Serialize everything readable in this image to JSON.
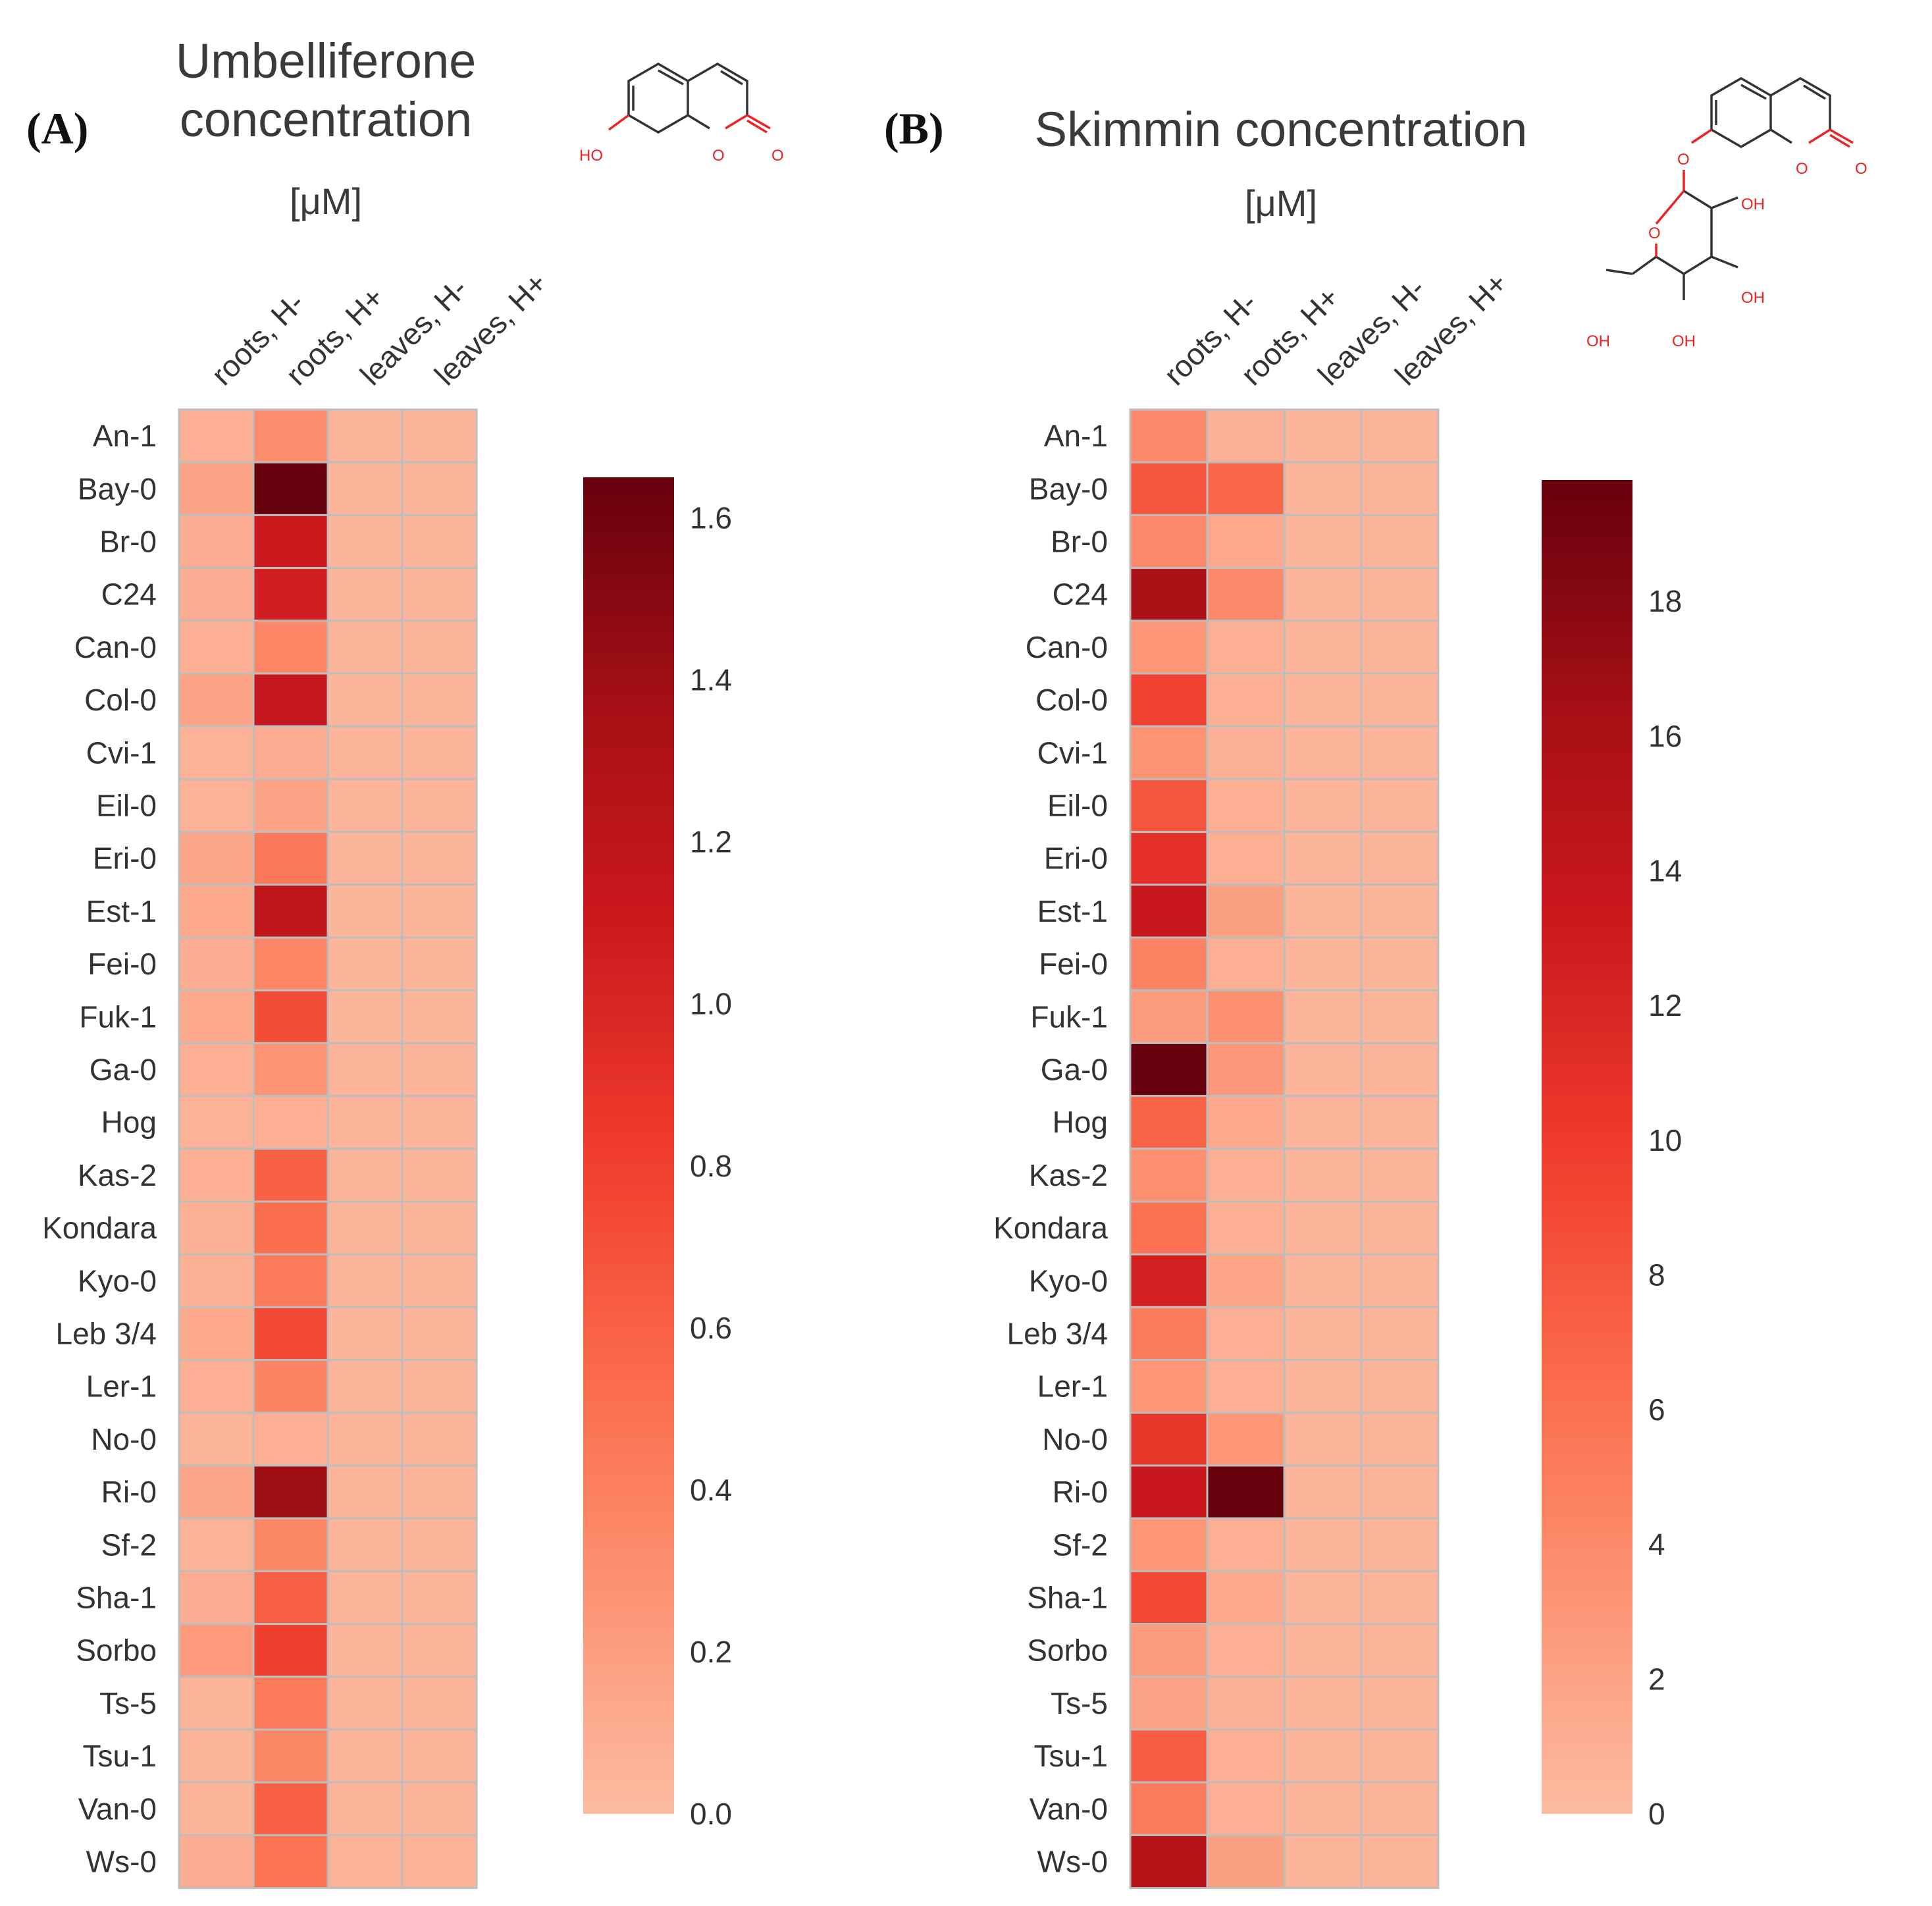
{
  "colors": {
    "scale": [
      "#fcbba1",
      "#fc9272",
      "#fb6a4a",
      "#ef3b2c",
      "#cb181d",
      "#a50f15",
      "#67000d"
    ],
    "cell_border": "#bdbdbd",
    "heteroatom": "#ee2222"
  },
  "chart_data": [
    {
      "type": "heatmap",
      "panel_label": "(A)",
      "title_lines": [
        "Umbelliferone",
        "concentration"
      ],
      "unit": "[μM]",
      "structure_labels": {
        "hydroxyl": "HO",
        "ring_oxygen": "O",
        "carbonyl": "O"
      },
      "columns": [
        "roots, H-",
        "roots, H+",
        "leaves, H-",
        "leaves, H+"
      ],
      "rows": [
        "An-1",
        "Bay-0",
        "Br-0",
        "C24",
        "Can-0",
        "Col-0",
        "Cvi-1",
        "Eil-0",
        "Eri-0",
        "Est-1",
        "Fei-0",
        "Fuk-1",
        "Ga-0",
        "Hog",
        "Kas-2",
        "Kondara",
        "Kyo-0",
        "Leb 3/4",
        "Ler-1",
        "No-0",
        "Ri-0",
        "Sf-2",
        "Sha-1",
        "Sorbo",
        "Ts-5",
        "Tsu-1",
        "Van-0",
        "Ws-0"
      ],
      "values": [
        [
          0.08,
          0.3,
          0.04,
          0.04
        ],
        [
          0.16,
          1.65,
          0.04,
          0.04
        ],
        [
          0.1,
          1.1,
          0.04,
          0.04
        ],
        [
          0.1,
          1.05,
          0.04,
          0.04
        ],
        [
          0.08,
          0.36,
          0.04,
          0.04
        ],
        [
          0.16,
          1.15,
          0.04,
          0.04
        ],
        [
          0.06,
          0.1,
          0.04,
          0.04
        ],
        [
          0.06,
          0.16,
          0.04,
          0.04
        ],
        [
          0.14,
          0.45,
          0.04,
          0.04
        ],
        [
          0.12,
          1.18,
          0.04,
          0.04
        ],
        [
          0.1,
          0.36,
          0.04,
          0.04
        ],
        [
          0.12,
          0.72,
          0.04,
          0.04
        ],
        [
          0.08,
          0.27,
          0.04,
          0.04
        ],
        [
          0.06,
          0.08,
          0.04,
          0.04
        ],
        [
          0.08,
          0.6,
          0.04,
          0.04
        ],
        [
          0.07,
          0.52,
          0.04,
          0.04
        ],
        [
          0.07,
          0.44,
          0.04,
          0.04
        ],
        [
          0.12,
          0.75,
          0.04,
          0.04
        ],
        [
          0.08,
          0.38,
          0.04,
          0.04
        ],
        [
          0.05,
          0.08,
          0.04,
          0.04
        ],
        [
          0.14,
          1.4,
          0.04,
          0.04
        ],
        [
          0.06,
          0.35,
          0.04,
          0.04
        ],
        [
          0.1,
          0.62,
          0.04,
          0.04
        ],
        [
          0.22,
          0.8,
          0.04,
          0.04
        ],
        [
          0.05,
          0.44,
          0.04,
          0.04
        ],
        [
          0.05,
          0.35,
          0.04,
          0.04
        ],
        [
          0.05,
          0.6,
          0.04,
          0.04
        ],
        [
          0.1,
          0.48,
          0.06,
          0.06
        ]
      ],
      "colorbar": {
        "min": 0,
        "max": 1.65,
        "ticks": [
          0.0,
          0.2,
          0.4,
          0.6,
          0.8,
          1.0,
          1.2,
          1.4,
          1.6
        ],
        "tick_labels": [
          "0.0",
          "0.2",
          "0.4",
          "0.6",
          "0.8",
          "1.0",
          "1.2",
          "1.4",
          "1.6"
        ]
      }
    },
    {
      "type": "heatmap",
      "panel_label": "(B)",
      "title_lines": [
        "Skimmin concentration"
      ],
      "unit": "[μM]",
      "structure_labels": {
        "ring_oxygen": "O",
        "carbonyl": "O",
        "glycosidic_oxygen": "O",
        "sugar_oxygen": "O",
        "hydroxyls": [
          "OH",
          "OH",
          "OH",
          "OH"
        ]
      },
      "columns": [
        "roots, H-",
        "roots, H+",
        "leaves, H-",
        "leaves, H+"
      ],
      "rows": [
        "An-1",
        "Bay-0",
        "Br-0",
        "C24",
        "Can-0",
        "Col-0",
        "Cvi-1",
        "Eil-0",
        "Eri-0",
        "Est-1",
        "Fei-0",
        "Fuk-1",
        "Ga-0",
        "Hog",
        "Kas-2",
        "Kondara",
        "Kyo-0",
        "Leb 3/4",
        "Ler-1",
        "No-0",
        "Ri-0",
        "Sf-2",
        "Sha-1",
        "Sorbo",
        "Ts-5",
        "Tsu-1",
        "Van-0",
        "Ws-0"
      ],
      "values": [
        [
          4.0,
          0.8,
          0.5,
          0.5
        ],
        [
          8.0,
          6.8,
          0.5,
          0.5
        ],
        [
          4.0,
          1.5,
          0.5,
          0.5
        ],
        [
          16.0,
          4.0,
          0.5,
          0.5
        ],
        [
          3.0,
          1.0,
          0.5,
          0.5
        ],
        [
          9.5,
          1.0,
          0.5,
          0.5
        ],
        [
          3.2,
          0.8,
          0.5,
          0.5
        ],
        [
          8.0,
          1.0,
          0.5,
          0.5
        ],
        [
          11.0,
          1.0,
          0.5,
          0.5
        ],
        [
          13.5,
          2.2,
          0.5,
          0.5
        ],
        [
          4.5,
          1.0,
          0.5,
          0.5
        ],
        [
          2.5,
          3.5,
          0.5,
          0.5
        ],
        [
          19.8,
          2.8,
          0.5,
          0.5
        ],
        [
          7.0,
          1.5,
          0.5,
          0.5
        ],
        [
          3.5,
          1.0,
          0.5,
          0.5
        ],
        [
          6.0,
          1.0,
          0.5,
          0.5
        ],
        [
          12.5,
          1.8,
          0.5,
          0.5
        ],
        [
          5.0,
          1.0,
          0.5,
          0.5
        ],
        [
          3.0,
          1.0,
          0.5,
          0.5
        ],
        [
          10.5,
          3.0,
          0.5,
          0.5
        ],
        [
          13.5,
          19.8,
          0.5,
          0.5
        ],
        [
          3.0,
          1.0,
          0.5,
          0.5
        ],
        [
          9.0,
          1.5,
          0.5,
          0.5
        ],
        [
          2.5,
          1.0,
          0.5,
          0.5
        ],
        [
          2.0,
          0.8,
          0.5,
          0.5
        ],
        [
          7.5,
          1.0,
          0.5,
          0.5
        ],
        [
          5.0,
          1.0,
          0.5,
          0.5
        ],
        [
          15.0,
          2.2,
          0.5,
          0.5
        ]
      ],
      "colorbar": {
        "min": 0,
        "max": 19.8,
        "ticks": [
          0,
          2,
          4,
          6,
          8,
          10,
          12,
          14,
          16,
          18
        ],
        "tick_labels": [
          "0",
          "2",
          "4",
          "6",
          "8",
          "10",
          "12",
          "14",
          "16",
          "18"
        ]
      }
    }
  ]
}
